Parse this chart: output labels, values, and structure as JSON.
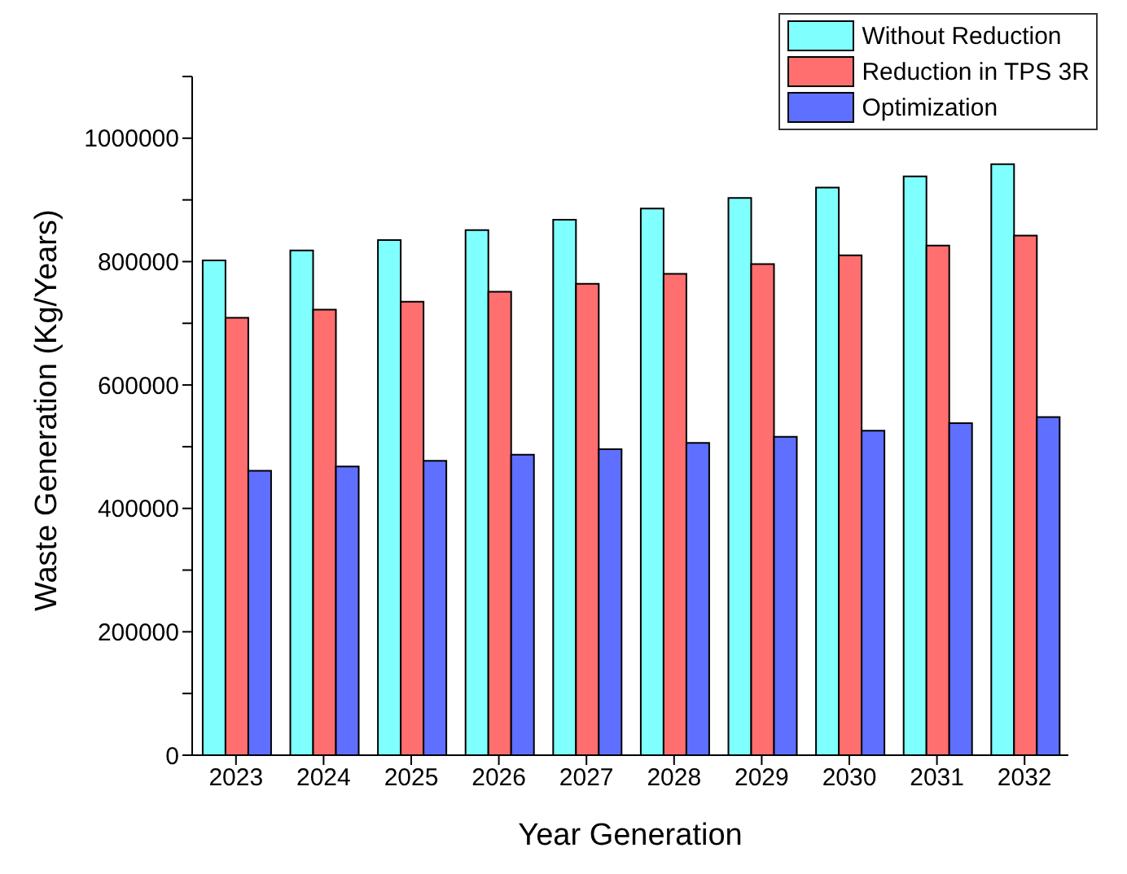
{
  "chart_data": {
    "type": "bar",
    "xlabel": "Year Generation",
    "ylabel": "Waste Generation (Kg/Years)",
    "categories": [
      "2023",
      "2024",
      "2025",
      "2026",
      "2027",
      "2028",
      "2029",
      "2030",
      "2031",
      "2032"
    ],
    "series": [
      {
        "name": "Without Reduction",
        "color": "#80ffff",
        "values": [
          802000,
          818000,
          835000,
          851000,
          868000,
          886000,
          903000,
          920000,
          938000,
          958000
        ]
      },
      {
        "name": "Reduction in TPS 3R",
        "color": "#ff6f6f",
        "values": [
          709000,
          722000,
          735000,
          751000,
          764000,
          780000,
          796000,
          810000,
          826000,
          842000
        ]
      },
      {
        "name": "Optimization",
        "color": "#5f6fff",
        "values": [
          461000,
          468000,
          477000,
          487000,
          496000,
          506000,
          516000,
          526000,
          538000,
          548000
        ]
      }
    ],
    "ylim": [
      0,
      1100000
    ],
    "yticks": [
      0,
      {
        "value": 100000,
        "label": null
      },
      200000,
      {
        "value": 300000,
        "label": null
      },
      400000,
      {
        "value": 500000,
        "label": null
      },
      600000,
      {
        "value": 700000,
        "label": null
      },
      800000,
      {
        "value": 900000,
        "label": null
      },
      1000000,
      {
        "value": 1100000,
        "label": null
      }
    ],
    "grid": false,
    "legend": "top right"
  }
}
